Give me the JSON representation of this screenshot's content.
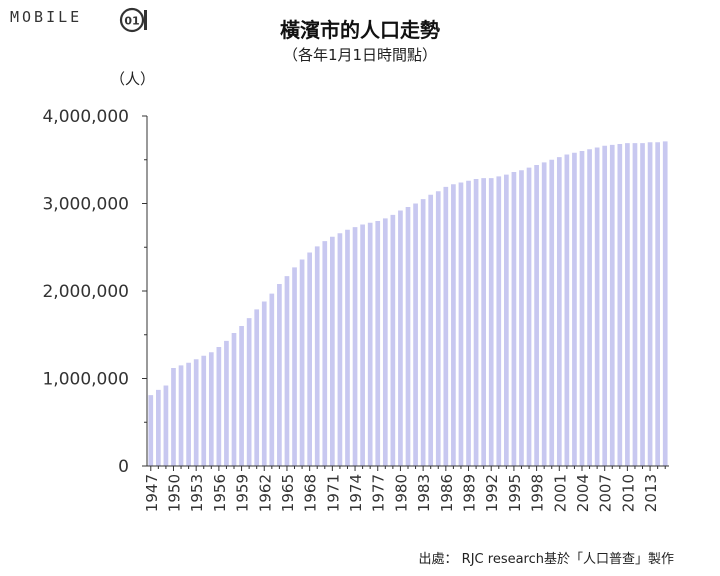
{
  "brand": {
    "logo_text": "MOBILE",
    "mark_glyph": "01"
  },
  "chart_data": {
    "type": "bar",
    "title": "橫濱市的人口走勢",
    "subtitle": "（各年1月1日時間點）",
    "ylabel": "（人）",
    "xlabel": "",
    "ylim": [
      0,
      4000000
    ],
    "yticks": [
      "0",
      "1,000,000",
      "2,000,000",
      "3,000,000",
      "4,000,000"
    ],
    "tick_labels_every": 3,
    "grid": false,
    "bar_color": "#c8c8f0",
    "categories": [
      "1947",
      "1948",
      "1949",
      "1950",
      "1951",
      "1952",
      "1953",
      "1954",
      "1955",
      "1956",
      "1957",
      "1958",
      "1959",
      "1960",
      "1961",
      "1962",
      "1963",
      "1964",
      "1965",
      "1966",
      "1967",
      "1968",
      "1969",
      "1970",
      "1971",
      "1972",
      "1973",
      "1974",
      "1975",
      "1976",
      "1977",
      "1978",
      "1979",
      "1980",
      "1981",
      "1982",
      "1983",
      "1984",
      "1985",
      "1986",
      "1987",
      "1988",
      "1989",
      "1990",
      "1991",
      "1992",
      "1993",
      "1994",
      "1995",
      "1996",
      "1997",
      "1998",
      "1999",
      "2000",
      "2001",
      "2002",
      "2003",
      "2004",
      "2005",
      "2006",
      "2007",
      "2008",
      "2009",
      "2010",
      "2011",
      "2012",
      "2013",
      "2014",
      "2015"
    ],
    "values": [
      810000,
      870000,
      920000,
      1120000,
      1150000,
      1180000,
      1220000,
      1260000,
      1300000,
      1360000,
      1430000,
      1520000,
      1600000,
      1690000,
      1790000,
      1880000,
      1970000,
      2080000,
      2170000,
      2270000,
      2360000,
      2440000,
      2510000,
      2570000,
      2620000,
      2660000,
      2700000,
      2730000,
      2760000,
      2780000,
      2800000,
      2830000,
      2870000,
      2920000,
      2960000,
      3000000,
      3050000,
      3100000,
      3140000,
      3190000,
      3220000,
      3240000,
      3260000,
      3280000,
      3290000,
      3290000,
      3310000,
      3330000,
      3360000,
      3380000,
      3410000,
      3440000,
      3470000,
      3500000,
      3530000,
      3560000,
      3580000,
      3600000,
      3620000,
      3640000,
      3660000,
      3670000,
      3680000,
      3690000,
      3690000,
      3690000,
      3700000,
      3700000,
      3710000
    ]
  },
  "source_text": "出處：  RJC research基於「人口普查」製作"
}
